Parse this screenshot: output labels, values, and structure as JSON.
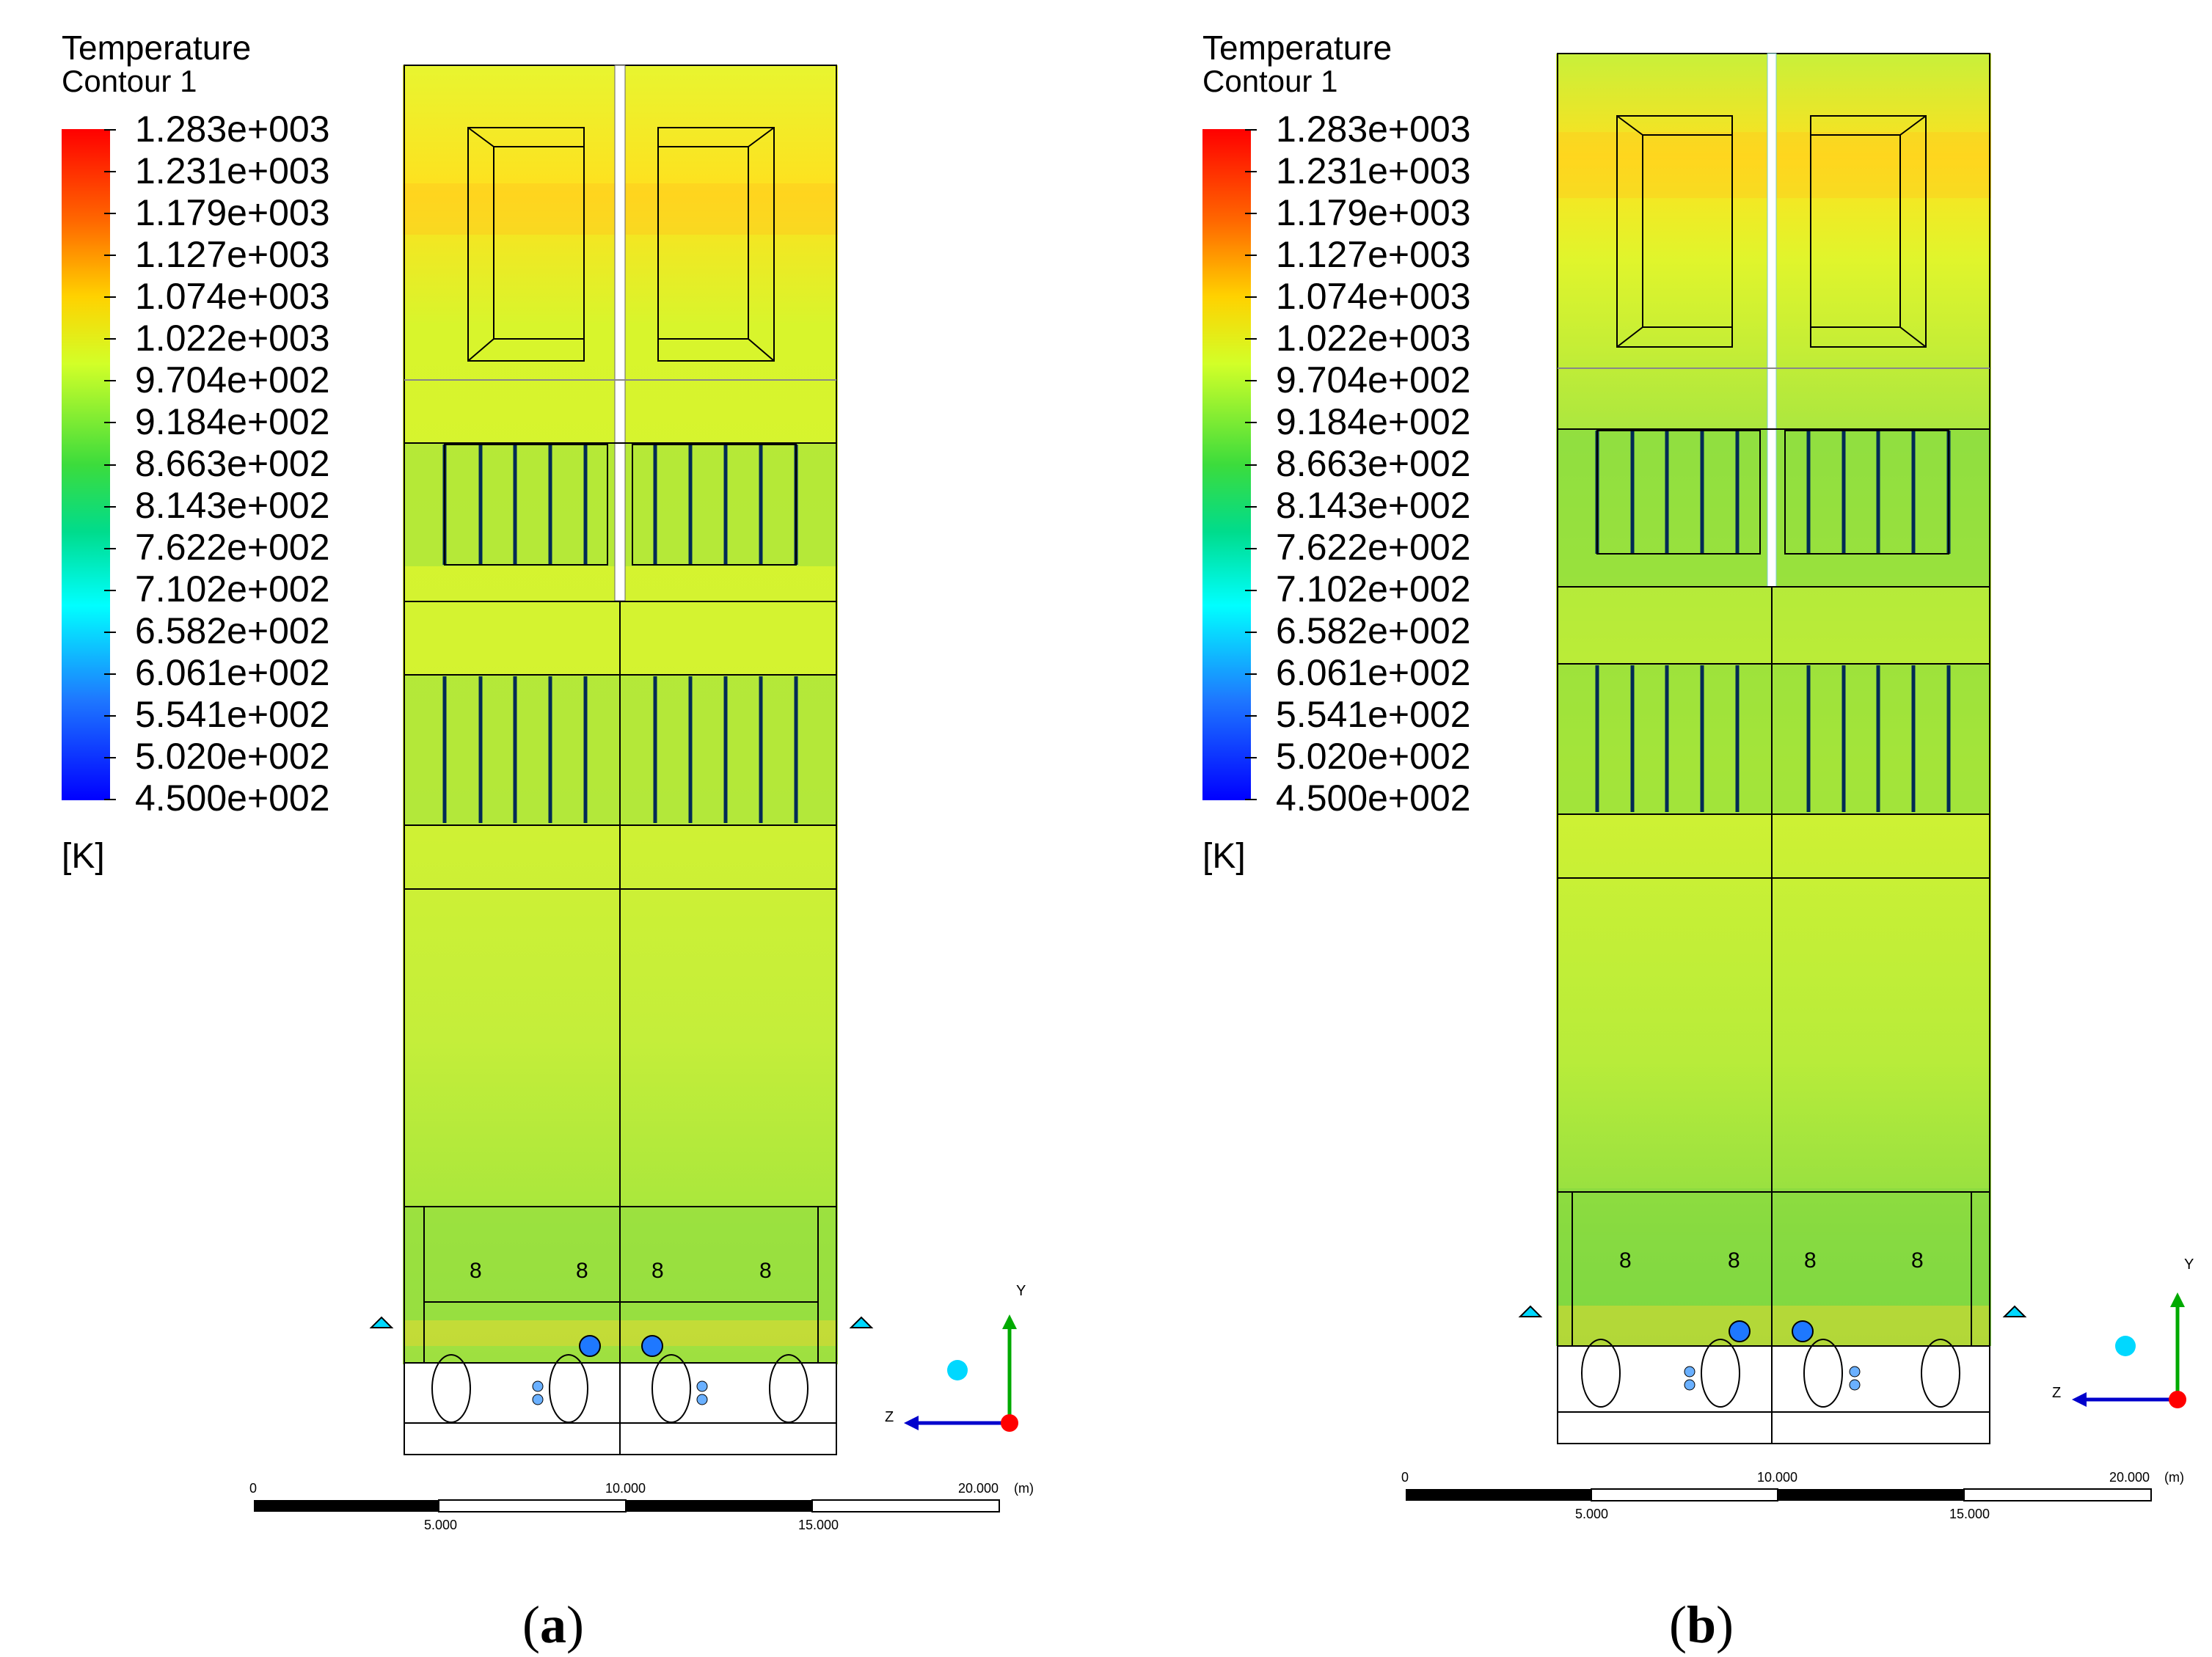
{
  "legend": {
    "title": "Temperature",
    "subtitle": "Contour 1",
    "unit": "[K]",
    "labels": [
      "1.283e+003",
      "1.231e+003",
      "1.179e+003",
      "1.127e+003",
      "1.074e+003",
      "1.022e+003",
      "9.704e+002",
      "9.184e+002",
      "8.663e+002",
      "8.143e+002",
      "7.622e+002",
      "7.102e+002",
      "6.582e+002",
      "6.061e+002",
      "5.541e+002",
      "5.020e+002",
      "4.500e+002"
    ],
    "min": 450.0,
    "max": 1283.0
  },
  "colors": {
    "hot": "#ff0000",
    "warm": "#ffd200",
    "mid": "#d2ff28",
    "green": "#3cdc3c",
    "cold": "#0000ff",
    "field_base": "#c8f03c"
  },
  "scale_bar": {
    "labels_top": [
      "0",
      "10.000",
      "20.000"
    ],
    "unit": "(m)",
    "labels_bottom": [
      "5.000",
      "15.000"
    ]
  },
  "axes": {
    "y_label": "Y",
    "z_label": "Z"
  },
  "panels": {
    "a": {
      "caption_open": "(",
      "caption_letter": "a",
      "caption_close": ")"
    },
    "b": {
      "caption_open": "(",
      "caption_letter": "b",
      "caption_close": ")"
    }
  }
}
